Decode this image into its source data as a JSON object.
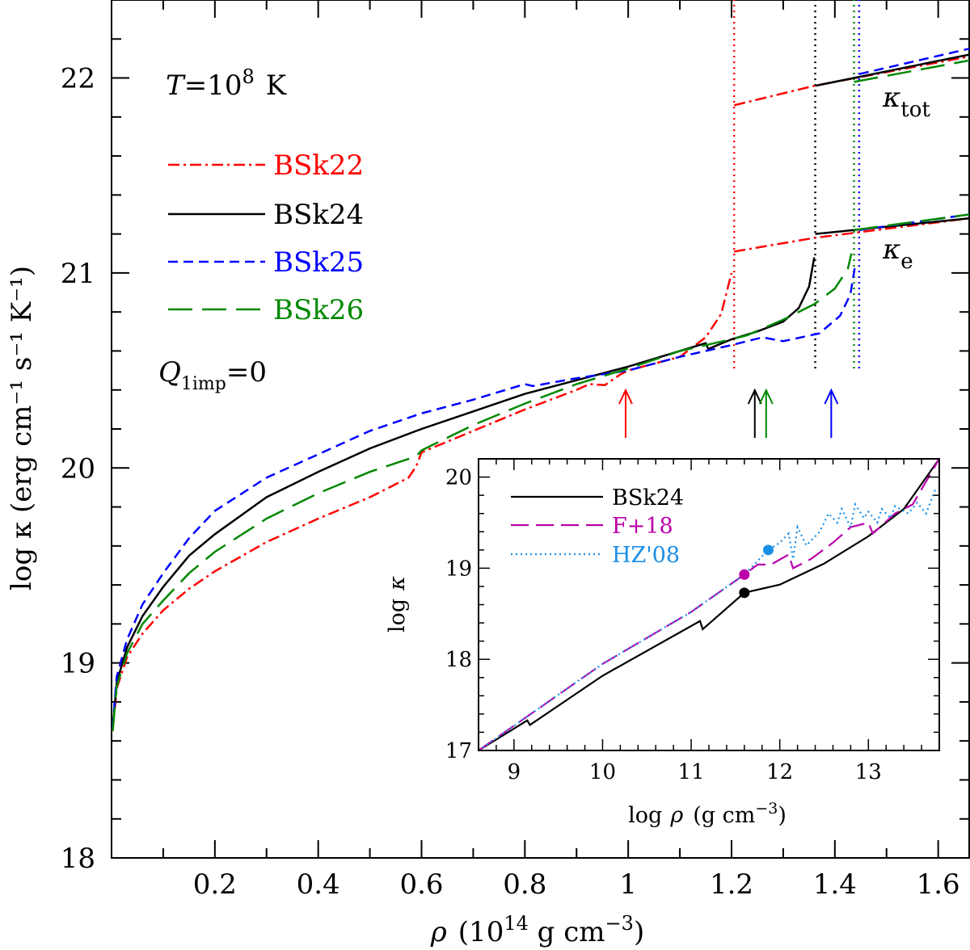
{
  "chart_data": {
    "type": "line",
    "main": {
      "annotation_temperature": "T = 10^8 K",
      "annotation_temperature_parts": {
        "T": "T",
        "eq": "=",
        "base": "10",
        "exp": "8",
        "unit": "K"
      },
      "annotation_qimp": {
        "Q": "Q",
        "sub": "1imp",
        "eq": "=0"
      },
      "label_ktot": {
        "kappa": "κ",
        "sub": "tot"
      },
      "label_ke": {
        "kappa": "κ",
        "sub": "e"
      },
      "xlabel": {
        "rho": "ρ",
        "pre": "(10",
        "exp": "14",
        "unit": " g cm",
        "exp2": "−3",
        "post": ")"
      },
      "ylabel": "log κ (erg cm⁻¹ s⁻¹ K⁻¹)",
      "xlim": [
        0.0,
        1.66
      ],
      "ylim": [
        18.0,
        22.4
      ],
      "xticks": [
        "0.2",
        "0.4",
        "0.6",
        "0.8",
        "1",
        "1.2",
        "1.4",
        "1.6"
      ],
      "xtick_values": [
        0.2,
        0.4,
        0.6,
        0.8,
        1.0,
        1.2,
        1.4,
        1.6
      ],
      "yticks": [
        "18",
        "19",
        "20",
        "21",
        "22"
      ],
      "ytick_values": [
        18,
        19,
        20,
        21,
        22
      ],
      "legend": [
        {
          "name": "BSk22",
          "color": "#ff0000",
          "style": "dashdot"
        },
        {
          "name": "BSk24",
          "color": "#000000",
          "style": "solid"
        },
        {
          "name": "BSk25",
          "color": "#0000ff",
          "style": "dashed"
        },
        {
          "name": "BSk26",
          "color": "#008800",
          "style": "longdash"
        }
      ],
      "vertical_lines": [
        {
          "x": 1.205,
          "color": "#ff0000",
          "y_range": [
            20.51,
            22.4
          ]
        },
        {
          "x": 1.362,
          "color": "#000000",
          "y_range": [
            20.51,
            22.4
          ]
        },
        {
          "x": 1.437,
          "color": "#008800",
          "y_range": [
            20.51,
            22.4
          ]
        },
        {
          "x": 1.447,
          "color": "#0000ff",
          "y_range": [
            20.51,
            22.4
          ]
        }
      ],
      "arrows": [
        {
          "x": 0.995,
          "color": "#ff0000"
        },
        {
          "x": 1.245,
          "color": "#000000"
        },
        {
          "x": 1.267,
          "color": "#008800"
        },
        {
          "x": 1.393,
          "color": "#0000ff"
        }
      ],
      "series": [
        {
          "name": "BSk22",
          "color": "#ff0000",
          "crust": [
            [
              0.002,
              18.65
            ],
            [
              0.01,
              18.87
            ],
            [
              0.03,
              19.03
            ],
            [
              0.06,
              19.15
            ],
            [
              0.1,
              19.27
            ],
            [
              0.15,
              19.38
            ],
            [
              0.2,
              19.47
            ],
            [
              0.3,
              19.62
            ],
            [
              0.4,
              19.74
            ],
            [
              0.5,
              19.85
            ],
            [
              0.575,
              19.95
            ],
            [
              0.59,
              20.01
            ],
            [
              0.6,
              20.08
            ],
            [
              0.7,
              20.19
            ],
            [
              0.8,
              20.3
            ],
            [
              0.9,
              20.4
            ],
            [
              0.925,
              20.43
            ],
            [
              0.955,
              20.425
            ],
            [
              0.985,
              20.48
            ],
            [
              1.0,
              20.5
            ],
            [
              1.1,
              20.57
            ],
            [
              1.15,
              20.67
            ],
            [
              1.18,
              20.79
            ],
            [
              1.2,
              21.0
            ]
          ],
          "core_e": [
            [
              1.205,
              21.11
            ],
            [
              1.36,
              21.18
            ],
            [
              1.66,
              21.28
            ]
          ],
          "core_tot": [
            [
              1.205,
              21.86
            ],
            [
              1.36,
              21.96
            ],
            [
              1.66,
              22.11
            ]
          ]
        },
        {
          "name": "BSk24",
          "color": "#000000",
          "crust": [
            [
              0.002,
              18.66
            ],
            [
              0.01,
              18.9
            ],
            [
              0.03,
              19.08
            ],
            [
              0.06,
              19.24
            ],
            [
              0.1,
              19.39
            ],
            [
              0.15,
              19.55
            ],
            [
              0.2,
              19.66
            ],
            [
              0.3,
              19.85
            ],
            [
              0.4,
              19.98
            ],
            [
              0.5,
              20.1
            ],
            [
              0.6,
              20.2
            ],
            [
              0.7,
              20.29
            ],
            [
              0.8,
              20.38
            ],
            [
              0.9,
              20.45
            ],
            [
              1.0,
              20.52
            ],
            [
              1.1,
              20.6
            ],
            [
              1.15,
              20.64
            ],
            [
              1.155,
              20.61
            ],
            [
              1.2,
              20.66
            ],
            [
              1.25,
              20.7
            ],
            [
              1.3,
              20.75
            ],
            [
              1.33,
              20.82
            ],
            [
              1.35,
              20.93
            ],
            [
              1.36,
              21.08
            ]
          ],
          "core_e": [
            [
              1.362,
              21.2
            ],
            [
              1.66,
              21.28
            ]
          ],
          "core_tot": [
            [
              1.362,
              21.96
            ],
            [
              1.66,
              22.12
            ]
          ]
        },
        {
          "name": "BSk25",
          "color": "#0000ff",
          "crust": [
            [
              0.002,
              18.67
            ],
            [
              0.01,
              18.93
            ],
            [
              0.03,
              19.12
            ],
            [
              0.06,
              19.3
            ],
            [
              0.1,
              19.46
            ],
            [
              0.15,
              19.64
            ],
            [
              0.2,
              19.78
            ],
            [
              0.3,
              19.95
            ],
            [
              0.4,
              20.07
            ],
            [
              0.5,
              20.19
            ],
            [
              0.6,
              20.28
            ],
            [
              0.7,
              20.35
            ],
            [
              0.8,
              20.43
            ],
            [
              0.815,
              20.42
            ],
            [
              0.9,
              20.46
            ],
            [
              1.0,
              20.5
            ],
            [
              1.1,
              20.57
            ],
            [
              1.2,
              20.63
            ],
            [
              1.26,
              20.67
            ],
            [
              1.3,
              20.65
            ],
            [
              1.37,
              20.69
            ],
            [
              1.41,
              20.78
            ],
            [
              1.43,
              20.89
            ],
            [
              1.44,
              21.05
            ]
          ],
          "core_e": [
            [
              1.447,
              21.22
            ],
            [
              1.66,
              21.3
            ]
          ],
          "core_tot": [
            [
              1.447,
              22.02
            ],
            [
              1.66,
              22.15
            ]
          ]
        },
        {
          "name": "BSk26",
          "color": "#008800",
          "crust": [
            [
              0.002,
              18.65
            ],
            [
              0.01,
              18.88
            ],
            [
              0.03,
              19.05
            ],
            [
              0.06,
              19.2
            ],
            [
              0.1,
              19.32
            ],
            [
              0.15,
              19.46
            ],
            [
              0.2,
              19.57
            ],
            [
              0.3,
              19.74
            ],
            [
              0.4,
              19.87
            ],
            [
              0.5,
              19.98
            ],
            [
              0.59,
              20.06
            ],
            [
              0.6,
              20.09
            ],
            [
              0.7,
              20.22
            ],
            [
              0.8,
              20.33
            ],
            [
              0.9,
              20.43
            ],
            [
              1.0,
              20.51
            ],
            [
              1.1,
              20.6
            ],
            [
              1.2,
              20.66
            ],
            [
              1.23,
              20.68
            ],
            [
              1.3,
              20.76
            ],
            [
              1.36,
              20.84
            ],
            [
              1.4,
              20.92
            ],
            [
              1.425,
              21.02
            ],
            [
              1.432,
              21.1
            ]
          ],
          "core_e": [
            [
              1.437,
              21.22
            ],
            [
              1.66,
              21.3
            ]
          ],
          "core_tot": [
            [
              1.437,
              21.98
            ],
            [
              1.66,
              22.09
            ]
          ]
        }
      ]
    },
    "inset": {
      "ylabel": {
        "log": "log",
        "kappa": "κ"
      },
      "xlabel": {
        "log": "log",
        "rho": "ρ",
        "pre": "(g cm",
        "exp": "−3",
        "post": ")"
      },
      "xlim": [
        8.6,
        13.8
      ],
      "ylim": [
        17.0,
        20.2
      ],
      "xticks": [
        "9",
        "10",
        "11",
        "12",
        "13"
      ],
      "xtick_values": [
        9,
        10,
        11,
        12,
        13
      ],
      "yticks": [
        "17",
        "18",
        "19",
        "20"
      ],
      "ytick_values": [
        17,
        18,
        19,
        20
      ],
      "legend": [
        {
          "name": "BSk24",
          "color": "#000000",
          "style": "solid"
        },
        {
          "name": "F+18",
          "color": "#bb00aa",
          "style": "longdash"
        },
        {
          "name": "HZ'08",
          "color": "#1a8fe6",
          "style": "dotted"
        }
      ],
      "markers": [
        {
          "series": "BSk24",
          "x": 11.6,
          "y": 18.73,
          "color": "#000000"
        },
        {
          "series": "F+18",
          "x": 11.6,
          "y": 18.93,
          "color": "#bb00aa"
        },
        {
          "series": "HZ'08",
          "x": 11.87,
          "y": 19.2,
          "color": "#1a8fe6"
        }
      ],
      "series": [
        {
          "name": "BSk24",
          "color": "#000000",
          "points": [
            [
              8.6,
              17.0
            ],
            [
              9.15,
              17.33
            ],
            [
              9.18,
              17.28
            ],
            [
              10.0,
              17.82
            ],
            [
              11.1,
              18.42
            ],
            [
              11.13,
              18.33
            ],
            [
              11.6,
              18.73
            ],
            [
              12.0,
              18.82
            ],
            [
              12.5,
              19.05
            ],
            [
              13.0,
              19.35
            ],
            [
              13.4,
              19.65
            ],
            [
              13.8,
              20.2
            ]
          ]
        },
        {
          "name": "F+18",
          "color": "#bb00aa",
          "points": [
            [
              8.6,
              17.0
            ],
            [
              10.0,
              17.95
            ],
            [
              11.0,
              18.52
            ],
            [
              11.6,
              18.93
            ],
            [
              11.75,
              19.04
            ],
            [
              11.9,
              19.04
            ],
            [
              12.1,
              19.15
            ],
            [
              12.15,
              19.0
            ],
            [
              12.35,
              19.1
            ],
            [
              12.6,
              19.28
            ],
            [
              12.8,
              19.45
            ],
            [
              13.0,
              19.5
            ],
            [
              13.05,
              19.38
            ],
            [
              13.3,
              19.6
            ],
            [
              13.5,
              19.7
            ],
            [
              13.8,
              20.2
            ]
          ]
        },
        {
          "name": "HZ'08",
          "color": "#1a8fe6",
          "points": [
            [
              8.6,
              17.0
            ],
            [
              10.0,
              17.95
            ],
            [
              11.0,
              18.52
            ],
            [
              11.6,
              18.93
            ],
            [
              11.87,
              19.2
            ],
            [
              12.0,
              19.28
            ],
            [
              12.1,
              19.38
            ],
            [
              12.15,
              19.1
            ],
            [
              12.2,
              19.45
            ],
            [
              12.3,
              19.25
            ],
            [
              12.45,
              19.4
            ],
            [
              12.55,
              19.6
            ],
            [
              12.65,
              19.5
            ],
            [
              12.7,
              19.65
            ],
            [
              12.8,
              19.45
            ],
            [
              12.85,
              19.7
            ],
            [
              12.95,
              19.55
            ],
            [
              13.0,
              19.62
            ],
            [
              13.1,
              19.5
            ],
            [
              13.15,
              19.65
            ],
            [
              13.25,
              19.55
            ],
            [
              13.3,
              19.68
            ],
            [
              13.45,
              19.6
            ],
            [
              13.55,
              19.72
            ],
            [
              13.65,
              19.6
            ],
            [
              13.75,
              19.85
            ],
            [
              13.8,
              19.85
            ]
          ]
        }
      ]
    }
  }
}
